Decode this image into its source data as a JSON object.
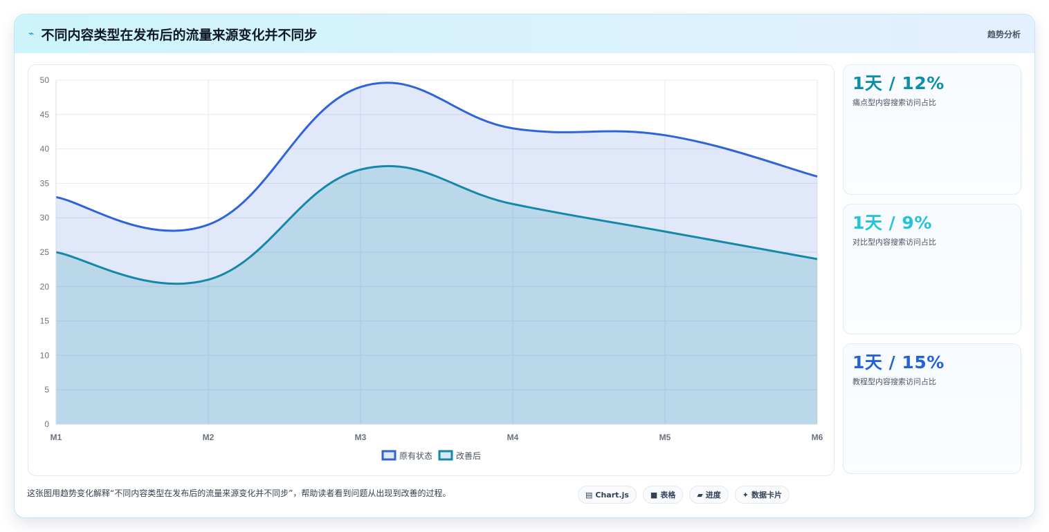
{
  "header": {
    "icon": "lightning-icon",
    "title": "不同内容类型在发布后的流量来源变化并不同步",
    "tag": "趋势分析"
  },
  "stats": [
    {
      "value": "1天 / 12%",
      "label": "痛点型内容搜索访问占比",
      "color": "#0e8fa8"
    },
    {
      "value": "1天 / 9%",
      "label": "对比型内容搜索访问占比",
      "color": "#22c3dd"
    },
    {
      "value": "1天 / 15%",
      "label": "教程型内容搜索访问占比",
      "color": "#2463d6"
    }
  ],
  "caption": "这张图用趋势变化解释“不同内容类型在发布后的流量来源变化并不同步”，帮助读者看到问题从出现到改善的过程。",
  "chips": [
    {
      "icon": "chart-icon",
      "glyph": "▤",
      "label": "Chart.js"
    },
    {
      "icon": "table-icon",
      "glyph": "■",
      "label": "表格"
    },
    {
      "icon": "progress-icon",
      "glyph": "▰",
      "label": "进度"
    },
    {
      "icon": "sparkle-icon",
      "glyph": "✦",
      "label": "数据卡片"
    }
  ],
  "chart_data": {
    "type": "area",
    "categories": [
      "M1",
      "M2",
      "M3",
      "M4",
      "M5",
      "M6"
    ],
    "ylim": [
      0,
      50
    ],
    "yticks": [
      0,
      5,
      10,
      15,
      20,
      25,
      30,
      35,
      40,
      45,
      50
    ],
    "grid": true,
    "legend_position": "bottom",
    "series": [
      {
        "name": "原有状态",
        "values": [
          33,
          29,
          49,
          43,
          42,
          36
        ],
        "color": "#2f63d9",
        "fill": "rgba(47,99,217,0.15)"
      },
      {
        "name": "改善后",
        "values": [
          25,
          21,
          37,
          32,
          28,
          24
        ],
        "color": "#1488a8",
        "fill": "rgba(20,136,168,0.18)"
      }
    ]
  }
}
